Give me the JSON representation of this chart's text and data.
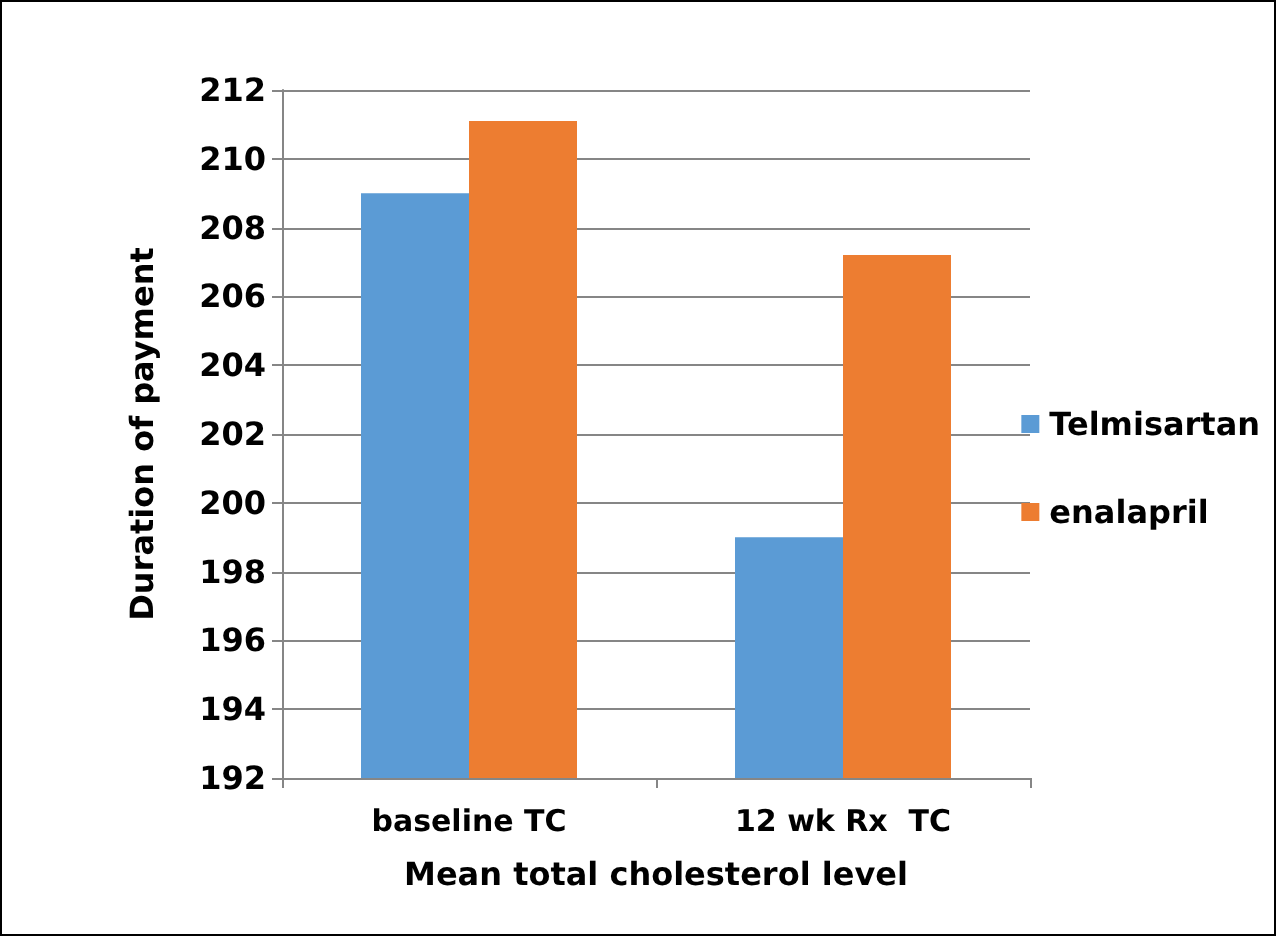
{
  "chart_data": {
    "type": "bar",
    "xlabel": "Mean total cholesterol level",
    "ylabel": "Duration of payment",
    "categories": [
      "baseline TC",
      "12 wk Rx  TC"
    ],
    "series": [
      {
        "name": "Telmisartan",
        "color": "#5b9bd5",
        "values": [
          209,
          199
        ]
      },
      {
        "name": "enalapril",
        "color": "#ed7d31",
        "values": [
          211.1,
          207.2
        ]
      }
    ],
    "ylim": [
      192,
      212
    ],
    "yticks": [
      192,
      194,
      196,
      198,
      200,
      202,
      204,
      206,
      208,
      210,
      212
    ],
    "grid": "y",
    "legend": "right"
  }
}
